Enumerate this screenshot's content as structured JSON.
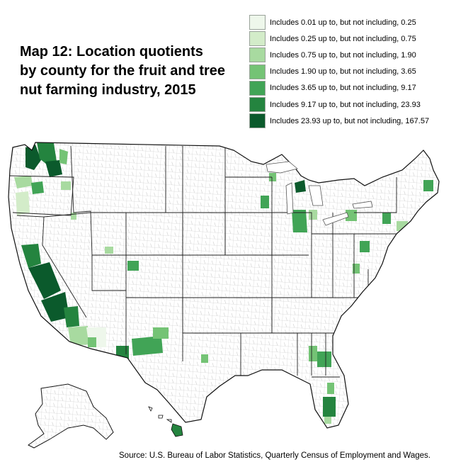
{
  "title_lines": [
    "Map 12: Location quotients",
    "by county for the fruit and tree",
    "nut farming industry, 2015"
  ],
  "legend": [
    {
      "label": "Includes 0.01 up to, but not including, 0.25",
      "color": "#eef7eb"
    },
    {
      "label": "Includes 0.25 up to, but not including, 0.75",
      "color": "#d3ecc9"
    },
    {
      "label": "Includes 0.75 up to, but not including, 1.90",
      "color": "#a8daa0"
    },
    {
      "label": "Includes 1.90 up to, but not including, 3.65",
      "color": "#74c375"
    },
    {
      "label": "Includes 3.65 up to, but not including, 9.17",
      "color": "#41a456"
    },
    {
      "label": "Includes 9.17 up to, but not including, 23.93",
      "color": "#24843f"
    },
    {
      "label": "Includes 23.93 up to, but not including, 167.57",
      "color": "#0b5a2c"
    }
  ],
  "source": "Source: U.S. Bureau of Labor Statistics, Quarterly Census of Employment and Wages."
}
